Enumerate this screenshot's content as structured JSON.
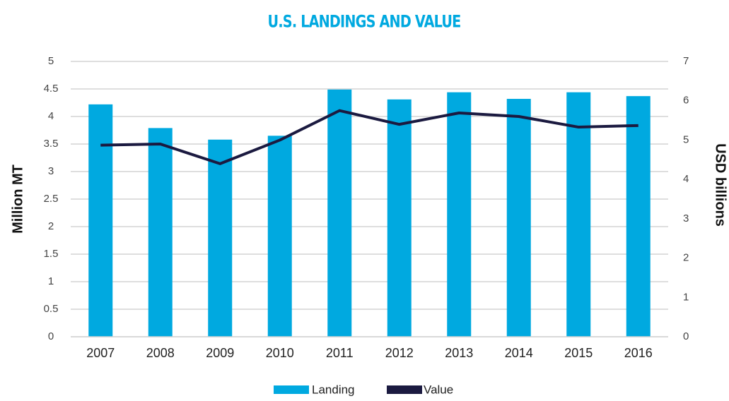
{
  "chart_data": {
    "type": "bar",
    "title": "U.S. LANDINGS AND VALUE",
    "y_label": "Million MT",
    "y2_label": "USD billions",
    "categories": [
      "2007",
      "2008",
      "2009",
      "2010",
      "2011",
      "2012",
      "2013",
      "2014",
      "2015",
      "2016"
    ],
    "series": [
      {
        "name": "Landing",
        "type": "bar",
        "color": "#00a9e0",
        "values": [
          4.22,
          3.79,
          3.58,
          3.65,
          4.49,
          4.31,
          4.44,
          4.32,
          4.44,
          4.37
        ]
      },
      {
        "name": "Value",
        "type": "line",
        "axis": "y2",
        "color": "#1b1a40",
        "values": [
          4.87,
          4.9,
          4.4,
          5.0,
          5.75,
          5.4,
          5.69,
          5.6,
          5.33,
          5.37
        ]
      }
    ],
    "ylim": [
      0,
      5
    ],
    "yticks": [
      0,
      0.5,
      1,
      1.5,
      2,
      2.5,
      3,
      3.5,
      4,
      4.5,
      5
    ],
    "y2lim": [
      0,
      7
    ],
    "y2ticks": [
      0,
      1,
      2,
      3,
      4,
      5,
      6,
      7
    ],
    "grid": true,
    "legend": "bottom"
  }
}
